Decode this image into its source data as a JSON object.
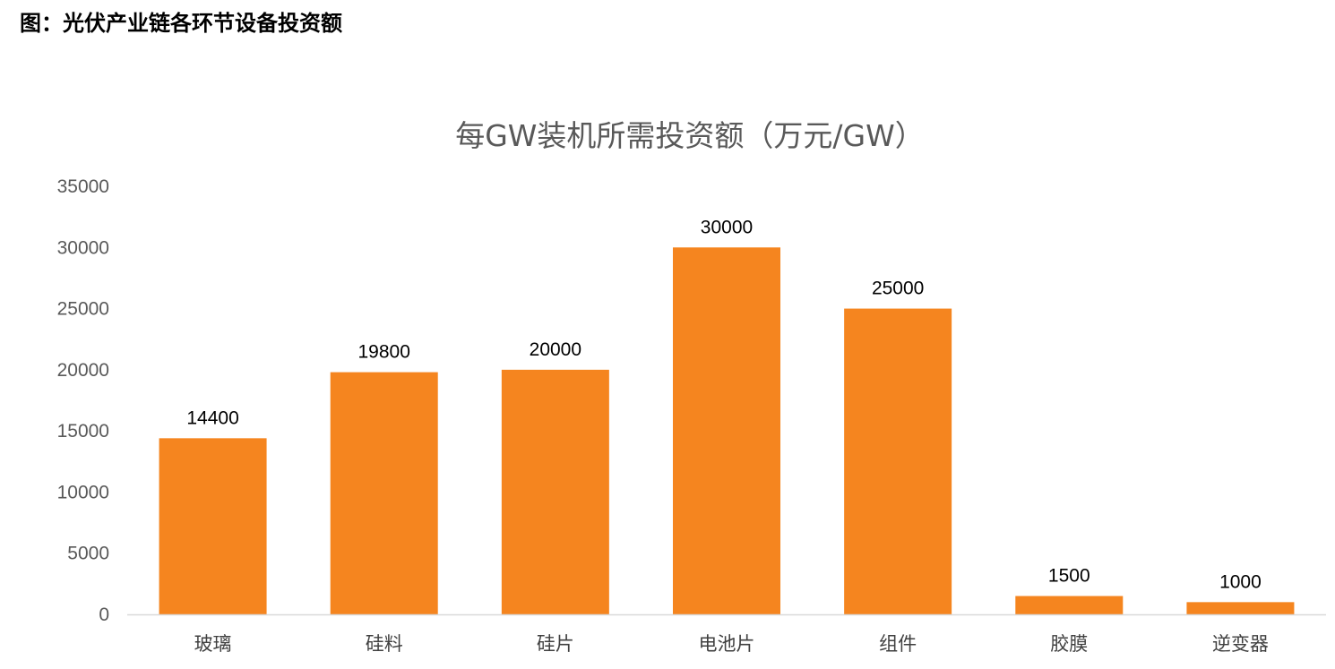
{
  "figure": {
    "caption": "图：光伏产业链各环节设备投资额"
  },
  "chart_data": {
    "type": "bar",
    "title": "每GW装机所需投资额（万元/GW）",
    "categories": [
      "玻璃",
      "硅料",
      "硅片",
      "电池片",
      "组件",
      "胶膜",
      "逆变器"
    ],
    "values": [
      14400,
      19800,
      20000,
      30000,
      25000,
      1500,
      1000
    ],
    "data_labels": [
      "14400",
      "19800",
      "20000",
      "30000",
      "25000",
      "1500",
      "1000"
    ],
    "yticks": [
      "0",
      "5000",
      "10000",
      "15000",
      "20000",
      "25000",
      "30000",
      "35000"
    ],
    "ylim": [
      0,
      35000
    ],
    "xlabel": "",
    "ylabel": "",
    "grid": false,
    "legend": "none",
    "bar_color": "#F5851F",
    "axis_color": "#D9D9D9"
  }
}
